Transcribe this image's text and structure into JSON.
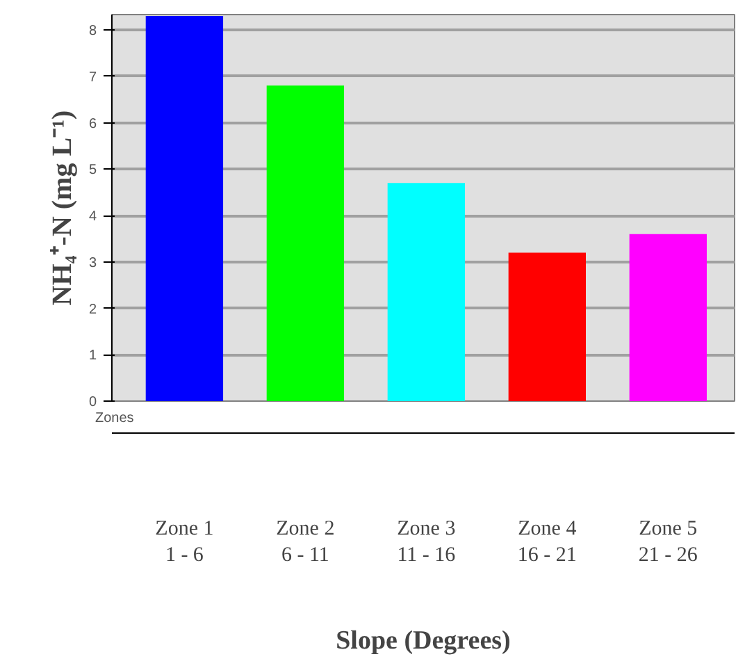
{
  "chart_data": {
    "type": "bar",
    "xlabel": "Slope (Degrees)",
    "ylabel": "NH₄⁺-N (mg L⁻¹)",
    "categories": [
      "Zone 1\n1 - 6",
      "Zone 2\n6 - 11",
      "Zone 3\n11 - 16",
      "Zone 4\n16 - 21",
      "Zone 5\n21 - 26"
    ],
    "values": [
      8.3,
      6.8,
      4.7,
      3.2,
      3.6
    ],
    "colors": [
      "#0000ff",
      "#00ff00",
      "#00ffff",
      "#ff0000",
      "#ff00ff"
    ],
    "ylim": [
      0,
      8.33
    ],
    "yticks": [
      0,
      1,
      2,
      3,
      4,
      5,
      6,
      7,
      8
    ],
    "grid": "y",
    "annotations": [
      "Zones"
    ]
  }
}
